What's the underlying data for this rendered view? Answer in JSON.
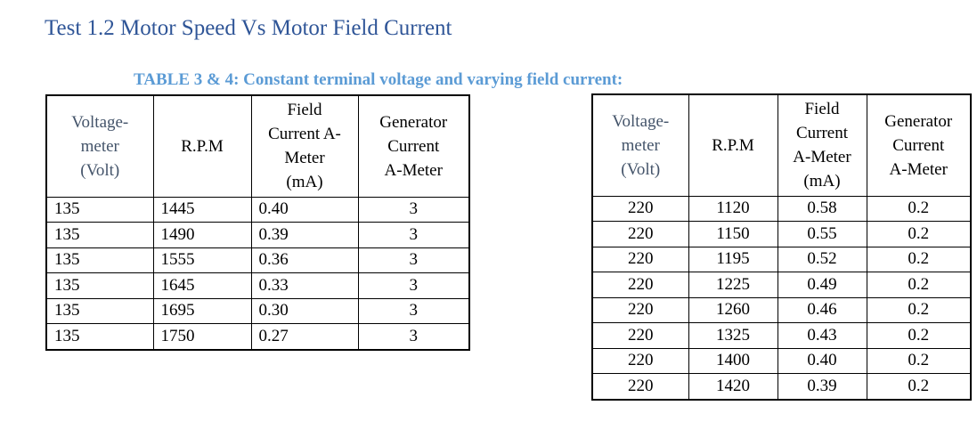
{
  "heading": "Test 1.2 Motor Speed Vs Motor Field Current",
  "caption": "TABLE 3 & 4: Constant terminal voltage and varying field current:",
  "table1": {
    "headers": [
      "Voltage-\nmeter\n(Volt)",
      "R.P.M",
      "Field\nCurrent A-\nMeter\n(mA)",
      "Generator\nCurrent\nA-Meter"
    ],
    "rows": [
      [
        "135",
        "1445",
        "0.40",
        "3"
      ],
      [
        "135",
        "1490",
        "0.39",
        "3"
      ],
      [
        "135",
        "1555",
        "0.36",
        "3"
      ],
      [
        "135",
        "1645",
        "0.33",
        "3"
      ],
      [
        "135",
        "1695",
        "0.30",
        "3"
      ],
      [
        "135",
        "1750",
        "0.27",
        "3"
      ]
    ]
  },
  "table2": {
    "headers": [
      "Voltage-\nmeter\n(Volt)",
      "R.P.M",
      "Field\nCurrent\nA-Meter\n(mA)",
      "Generator\nCurrent\nA-Meter"
    ],
    "rows": [
      [
        "220",
        "1120",
        "0.58",
        "0.2"
      ],
      [
        "220",
        "1150",
        "0.55",
        "0.2"
      ],
      [
        "220",
        "1195",
        "0.52",
        "0.2"
      ],
      [
        "220",
        "1225",
        "0.49",
        "0.2"
      ],
      [
        "220",
        "1260",
        "0.46",
        "0.2"
      ],
      [
        "220",
        "1325",
        "0.43",
        "0.2"
      ],
      [
        "220",
        "1400",
        "0.40",
        "0.2"
      ],
      [
        "220",
        "1420",
        "0.39",
        "0.2"
      ]
    ]
  }
}
